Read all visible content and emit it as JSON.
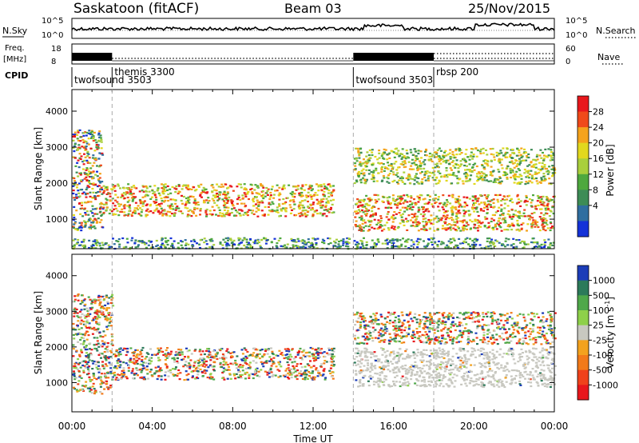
{
  "header": {
    "station": "Saskatoon (fitACF)",
    "beam": "Beam 03",
    "date": "25/Nov/2015"
  },
  "sky_panel": {
    "left_label": "N.Sky",
    "right_label": "N.Search",
    "left_ticks": [
      "10^5",
      "10^0"
    ],
    "right_ticks": [
      "10^5",
      "10^0"
    ]
  },
  "freq_panel": {
    "left_label_line1": "Freq.",
    "left_label_line2": "[MHz]",
    "right_label": "Nave",
    "left_ticks": [
      "18",
      "8"
    ],
    "right_ticks": [
      "60",
      "0"
    ]
  },
  "cpid": {
    "label": "CPID",
    "segments": [
      {
        "name": "twofsound 3503",
        "start_hour": 0.0
      },
      {
        "name": "themis 3300",
        "start_hour": 2.0
      },
      {
        "name": "twofsound 3503",
        "start_hour": 14.0
      },
      {
        "name": "rbsp 200",
        "start_hour": 18.0
      }
    ]
  },
  "chart_data": [
    {
      "type": "heatmap",
      "name": "power",
      "xlabel": "",
      "ylabel": "Slant Range [km]",
      "xlim": [
        0,
        24
      ],
      "ylim": [
        180,
        4600
      ],
      "yticks": [
        1000,
        2000,
        3000,
        4000
      ],
      "colorbar": {
        "label": "Power [dB]",
        "tick_labels": [
          "28",
          "24",
          "20",
          "16",
          "12",
          "8",
          "4"
        ],
        "colors": [
          "#e8171c",
          "#f04a1a",
          "#f5a31c",
          "#e2d81e",
          "#a9cf3c",
          "#4ea83e",
          "#3d8c56",
          "#2f6ea0",
          "#1432d8"
        ]
      },
      "bands": [
        {
          "start_hour": 0.0,
          "end_hour": 1.5,
          "range_min": 700,
          "range_max": 3500,
          "level": "mixed"
        },
        {
          "start_hour": 1.5,
          "end_hour": 13.0,
          "range_min": 1100,
          "range_max": 2000,
          "level": "high"
        },
        {
          "start_hour": 14.0,
          "end_hour": 24.0,
          "range_min": 700,
          "range_max": 1700,
          "level": "high"
        },
        {
          "start_hour": 14.0,
          "end_hour": 24.0,
          "range_min": 2000,
          "range_max": 3000,
          "level": "medium"
        },
        {
          "start_hour": 0.0,
          "end_hour": 24.0,
          "range_min": 200,
          "range_max": 500,
          "level": "low"
        }
      ]
    },
    {
      "type": "heatmap",
      "name": "velocity",
      "xlabel": "Time UT",
      "ylabel": "Slant Range [km]",
      "xlim": [
        0,
        24
      ],
      "ylim": [
        180,
        4600
      ],
      "xtick_labels": [
        "00:00",
        "04:00",
        "08:00",
        "12:00",
        "16:00",
        "20:00",
        "00:00"
      ],
      "xtick_hours": [
        0,
        4,
        8,
        12,
        16,
        20,
        24
      ],
      "yticks": [
        1000,
        2000,
        3000,
        4000
      ],
      "colorbar": {
        "label": "Velocity [m s",
        "tick_labels": [
          "1000",
          "500",
          "100",
          "25",
          "-25",
          "-100",
          "-500",
          "-1000"
        ],
        "colors": [
          "#1c3db8",
          "#2c7a5a",
          "#4fa84a",
          "#8ed04a",
          "#c8c8c0",
          "#f3a21e",
          "#f27a1a",
          "#f0421b",
          "#e8171c"
        ]
      },
      "bands": [
        {
          "start_hour": 0.0,
          "end_hour": 2.0,
          "range_min": 700,
          "range_max": 3500,
          "level": "mixed"
        },
        {
          "start_hour": 2.0,
          "end_hour": 13.0,
          "range_min": 1100,
          "range_max": 2000,
          "level": "mixed"
        },
        {
          "start_hour": 14.0,
          "end_hour": 24.0,
          "range_min": 900,
          "range_max": 2000,
          "level": "ground"
        },
        {
          "start_hour": 14.0,
          "end_hour": 24.0,
          "range_min": 2100,
          "range_max": 3000,
          "level": "mixed"
        }
      ]
    }
  ]
}
